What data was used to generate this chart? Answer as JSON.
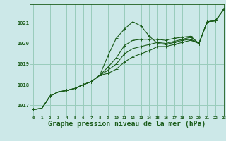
{
  "background_color": "#cce8e8",
  "grid_color": "#99ccbb",
  "line_color": "#1a5c1a",
  "xlabel": "Graphe pression niveau de la mer (hPa)",
  "xlabel_fontsize": 7,
  "ylim": [
    1016.5,
    1021.9
  ],
  "xlim": [
    -0.5,
    23
  ],
  "yticks": [
    1017,
    1018,
    1019,
    1020,
    1021
  ],
  "xticks": [
    0,
    1,
    2,
    3,
    4,
    5,
    6,
    7,
    8,
    9,
    10,
    11,
    12,
    13,
    14,
    15,
    16,
    17,
    18,
    19,
    20,
    21,
    22,
    23
  ],
  "series": [
    [
      1016.8,
      1016.85,
      1017.45,
      1017.65,
      1017.72,
      1017.82,
      1018.0,
      1018.15,
      1018.45,
      1019.4,
      1020.25,
      1020.7,
      1021.05,
      1020.85,
      1020.35,
      1020.0,
      1019.95,
      1020.05,
      1020.15,
      1020.2,
      1020.0,
      1021.05,
      1021.1,
      1021.65
    ],
    [
      1016.8,
      1016.85,
      1017.45,
      1017.65,
      1017.72,
      1017.82,
      1018.0,
      1018.15,
      1018.45,
      1018.85,
      1019.3,
      1019.9,
      1020.15,
      1020.2,
      1020.2,
      1020.2,
      1020.15,
      1020.25,
      1020.3,
      1020.35,
      1020.0,
      1021.05,
      1021.1,
      1021.65
    ],
    [
      1016.8,
      1016.85,
      1017.45,
      1017.65,
      1017.72,
      1017.82,
      1018.0,
      1018.15,
      1018.45,
      1018.7,
      1019.0,
      1019.5,
      1019.75,
      1019.85,
      1019.95,
      1020.05,
      1020.0,
      1020.1,
      1020.2,
      1020.3,
      1020.0,
      1021.05,
      1021.1,
      1021.65
    ],
    [
      1016.8,
      1016.85,
      1017.45,
      1017.65,
      1017.72,
      1017.82,
      1018.0,
      1018.15,
      1018.45,
      1018.55,
      1018.75,
      1019.1,
      1019.35,
      1019.5,
      1019.65,
      1019.85,
      1019.85,
      1019.95,
      1020.05,
      1020.15,
      1020.0,
      1021.05,
      1021.1,
      1021.65
    ]
  ]
}
